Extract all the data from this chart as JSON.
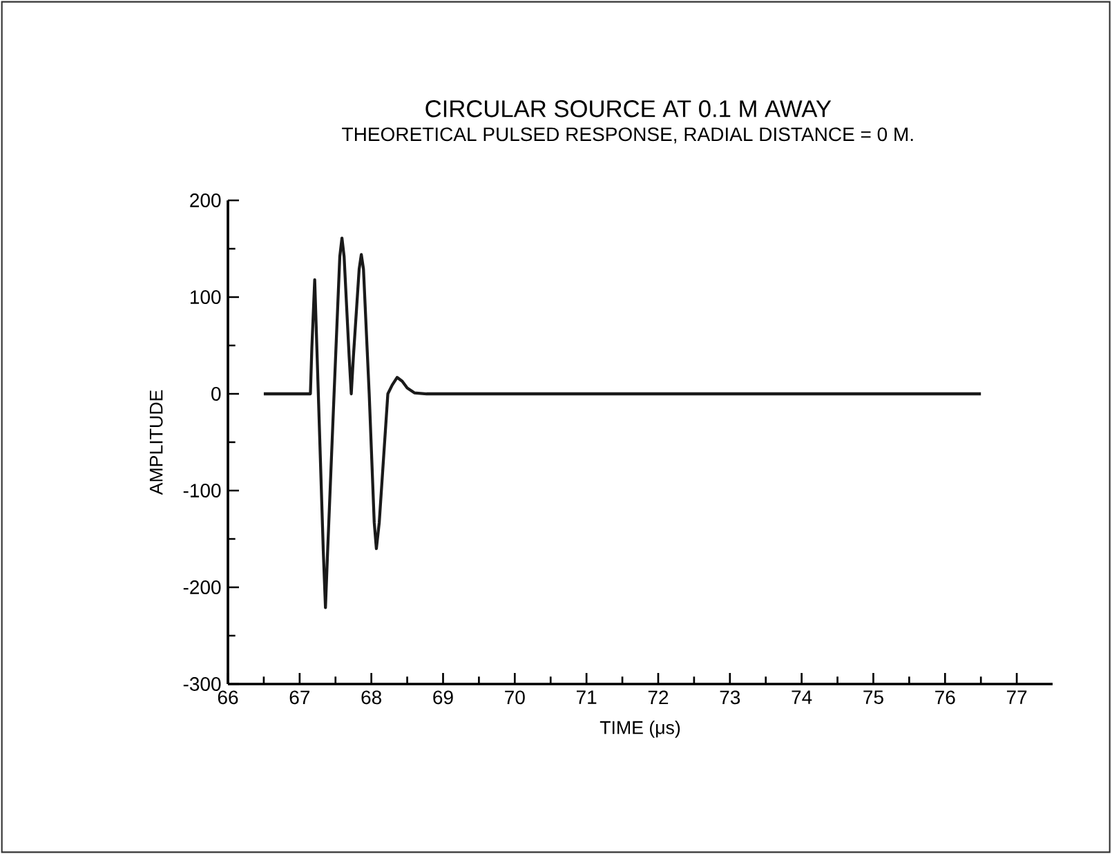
{
  "chart_data": {
    "type": "line",
    "title": "CIRCULAR SOURCE AT 0.1  M AWAY",
    "subtitle": "THEORETICAL PULSED RESPONSE, RADIAL DISTANCE = 0 M.",
    "xlabel": "TIME (μs)",
    "ylabel": "AMPLITUDE",
    "x": [
      66.5,
      67.15,
      67.17,
      67.21,
      67.33,
      67.36,
      67.39,
      67.48,
      67.56,
      67.59,
      67.62,
      67.69,
      67.72,
      67.75,
      67.83,
      67.86,
      67.89,
      67.97,
      68.04,
      68.07,
      68.11,
      68.23,
      68.29,
      68.36,
      68.43,
      68.5,
      68.6,
      68.77,
      76.5
    ],
    "series": [
      {
        "color": "#1a1a1a",
        "values": [
          0,
          0,
          47,
          118,
          -163,
          -221,
          -163,
          0,
          142,
          161,
          142,
          39,
          0,
          39,
          129,
          144,
          129,
          0,
          -133,
          -160,
          -133,
          0,
          9,
          17,
          13,
          6,
          1,
          0,
          0
        ]
      }
    ],
    "xlim": [
      66,
      77.5
    ],
    "xticks": [
      66,
      67,
      68,
      69,
      70,
      71,
      72,
      73,
      74,
      75,
      76,
      77
    ],
    "ylim": [
      -300,
      200
    ],
    "yticks": [
      -300,
      -200,
      -100,
      0,
      100,
      200
    ],
    "grid": false,
    "marker": "none",
    "line_style": "solid"
  }
}
